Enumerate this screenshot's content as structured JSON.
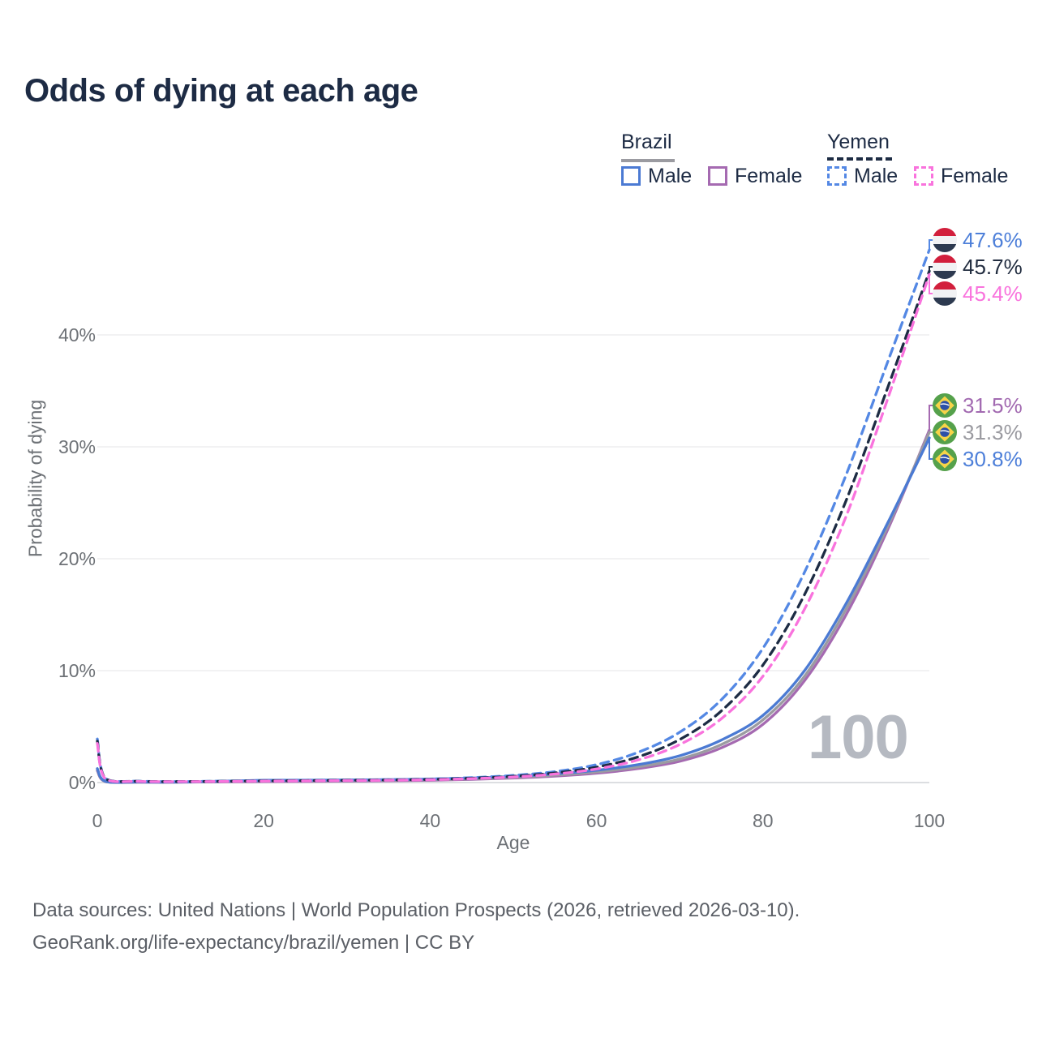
{
  "title": "Odds of dying at each age",
  "legend": {
    "groups": [
      {
        "label": "Brazil",
        "line_style": "solid",
        "underline_color": "#9b9ba1",
        "items": [
          {
            "label": "Male",
            "color": "#4b7ad3"
          },
          {
            "label": "Female",
            "color": "#a56ab1"
          }
        ]
      },
      {
        "label": "Yemen",
        "line_style": "dashed",
        "underline_color": "#1d2c44",
        "items": [
          {
            "label": "Male",
            "color": "#5488e4"
          },
          {
            "label": "Female",
            "color": "#f973dd"
          }
        ]
      }
    ]
  },
  "chart_data": {
    "type": "line",
    "title": "Odds of dying at each age",
    "xlabel": "Age",
    "ylabel": "Probability of dying",
    "xlim": [
      0,
      100
    ],
    "ylim_percent": [
      0,
      48
    ],
    "grid": "horizontal",
    "x_ticks": [
      0,
      20,
      40,
      60,
      80,
      100
    ],
    "x_tick_labels": [
      "0",
      "20",
      "40",
      "60",
      "80",
      "100"
    ],
    "y_ticks_percent": [
      0,
      10,
      20,
      30,
      40
    ],
    "y_tick_labels": [
      "0%",
      "10%",
      "20%",
      "30%",
      "40%"
    ],
    "ages": [
      0,
      1,
      5,
      10,
      15,
      20,
      25,
      30,
      35,
      40,
      45,
      50,
      55,
      60,
      65,
      70,
      75,
      80,
      85,
      90,
      95,
      100
    ],
    "series": [
      {
        "id": "brazil_female",
        "name": "Brazil Female",
        "color": "#a56ab1",
        "dash": null,
        "values_percent": [
          1.05,
          0.08,
          0.03,
          0.03,
          0.06,
          0.08,
          0.1,
          0.12,
          0.15,
          0.2,
          0.28,
          0.4,
          0.57,
          0.83,
          1.25,
          1.9,
          3.1,
          5.2,
          9.1,
          15.0,
          22.6,
          31.5
        ],
        "end_label": "31.5%"
      },
      {
        "id": "brazil_total",
        "name": "Brazil Total",
        "color": "#9b9ba1",
        "dash": null,
        "values_percent": [
          1.15,
          0.09,
          0.035,
          0.035,
          0.09,
          0.14,
          0.16,
          0.17,
          0.2,
          0.25,
          0.33,
          0.46,
          0.66,
          0.95,
          1.4,
          2.1,
          3.4,
          5.6,
          9.5,
          15.5,
          22.9,
          31.3
        ],
        "end_label": "31.3%"
      },
      {
        "id": "brazil_male",
        "name": "Brazil Male",
        "color": "#4b7ad3",
        "dash": null,
        "values_percent": [
          1.25,
          0.1,
          0.04,
          0.04,
          0.12,
          0.2,
          0.22,
          0.23,
          0.26,
          0.31,
          0.4,
          0.55,
          0.78,
          1.1,
          1.6,
          2.4,
          3.8,
          6.0,
          10.0,
          16.0,
          23.2,
          30.8
        ],
        "end_label": "30.8%"
      },
      {
        "id": "yemen_male",
        "name": "Yemen Male",
        "color": "#5488e4",
        "dash": "10 7",
        "values_percent": [
          3.9,
          0.35,
          0.12,
          0.09,
          0.13,
          0.17,
          0.2,
          0.22,
          0.26,
          0.32,
          0.44,
          0.64,
          0.98,
          1.6,
          2.7,
          4.5,
          7.4,
          12.0,
          18.8,
          27.5,
          37.6,
          47.6
        ],
        "end_label": "47.6%"
      },
      {
        "id": "yemen_total",
        "name": "Yemen Total",
        "color": "#1d2c44",
        "dash": "10 7",
        "values_percent": [
          3.7,
          0.33,
          0.11,
          0.085,
          0.115,
          0.15,
          0.175,
          0.2,
          0.235,
          0.285,
          0.39,
          0.56,
          0.86,
          1.38,
          2.3,
          3.85,
          6.4,
          10.5,
          16.8,
          25.2,
          35.3,
          45.7
        ],
        "end_label": "45.7%"
      },
      {
        "id": "yemen_female",
        "name": "Yemen Female",
        "color": "#f973dd",
        "dash": "10 7",
        "values_percent": [
          3.5,
          0.31,
          0.1,
          0.08,
          0.1,
          0.13,
          0.155,
          0.18,
          0.21,
          0.255,
          0.35,
          0.5,
          0.76,
          1.22,
          2.02,
          3.4,
          5.7,
          9.5,
          15.5,
          23.8,
          34.3,
          45.4
        ],
        "end_label": "45.4%"
      }
    ]
  },
  "end_labels": [
    {
      "value": "47.6%",
      "series": "yemen_male",
      "flag": "yemen",
      "color": "#4d7fd9"
    },
    {
      "value": "45.7%",
      "series": "yemen_total",
      "flag": "yemen",
      "color": "#222d40"
    },
    {
      "value": "45.4%",
      "series": "yemen_female",
      "flag": "yemen",
      "color": "#f973dd"
    },
    {
      "value": "31.5%",
      "series": "brazil_female",
      "flag": "brazil",
      "color": "#a26ab1"
    },
    {
      "value": "31.3%",
      "series": "brazil_total",
      "flag": "brazil",
      "color": "#9b9ba1"
    },
    {
      "value": "30.8%",
      "series": "brazil_male",
      "flag": "brazil",
      "color": "#4d7fd9"
    }
  ],
  "watermark_age": "100",
  "footer": {
    "line1": "Data sources: United Nations | World Population Prospects (2026, retrieved 2026-03-10).",
    "line2": "GeoRank.org/life-expectancy/brazil/yemen | CC BY"
  },
  "colors": {
    "title": "#1d2b44",
    "axis_text": "#6d7176",
    "grid_line": "#ededef",
    "zero_line": "#dcdee1",
    "watermark": "#b5b9c1",
    "footer_text": "#5b5f66",
    "yemen_flag": {
      "red": "#d21f3c",
      "white": "#f1f2f4",
      "black": "#2d3a50"
    },
    "brazil_flag": {
      "green": "#55a14b",
      "yellow": "#f7d448",
      "blue": "#2d50a7"
    }
  }
}
